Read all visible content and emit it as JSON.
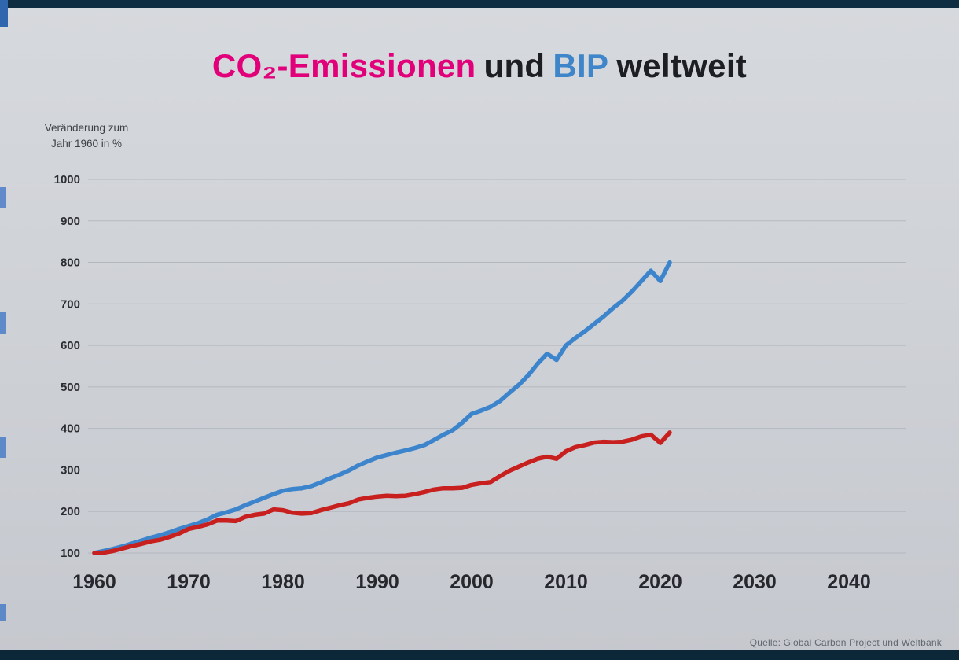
{
  "title": {
    "part1": "CO₂-Emissionen",
    "part2": "und",
    "part3": "BIP",
    "part4": "weltweit"
  },
  "y_axis_label": {
    "line1": "Veränderung zum",
    "line2": "Jahr 1960 in %"
  },
  "source": "Quelle: Global Carbon Project und Weltbank",
  "colors": {
    "title_pink": "#e2007a",
    "title_blue": "#3e86c9",
    "title_dark": "#1d1e24",
    "bip_line": "#3c85cc",
    "co2_line": "#c8201f"
  },
  "chart_data": {
    "type": "line",
    "title": "CO₂-Emissionen und BIP weltweit",
    "xlabel": "",
    "ylabel": "Veränderung zum Jahr 1960 in %",
    "grid": "horizontal",
    "legend": "none",
    "xlim": [
      1958,
      2046
    ],
    "ylim": [
      100,
      1000
    ],
    "x_ticks": [
      1960,
      1970,
      1980,
      1990,
      2000,
      2010,
      2020,
      2030,
      2040
    ],
    "y_ticks": [
      100,
      200,
      300,
      400,
      500,
      600,
      700,
      800,
      900,
      1000
    ],
    "x": [
      1960,
      1961,
      1962,
      1963,
      1964,
      1965,
      1966,
      1967,
      1968,
      1969,
      1970,
      1971,
      1972,
      1973,
      1974,
      1975,
      1976,
      1977,
      1978,
      1979,
      1980,
      1981,
      1982,
      1983,
      1984,
      1985,
      1986,
      1987,
      1988,
      1989,
      1990,
      1991,
      1992,
      1993,
      1994,
      1995,
      1996,
      1997,
      1998,
      1999,
      2000,
      2001,
      2002,
      2003,
      2004,
      2005,
      2006,
      2007,
      2008,
      2009,
      2010,
      2011,
      2012,
      2013,
      2014,
      2015,
      2016,
      2017,
      2018,
      2019,
      2020,
      2021
    ],
    "series": [
      {
        "name": "BIP",
        "color": "#3c85cc",
        "values": [
          100,
          105,
          110,
          116,
          123,
          130,
          137,
          143,
          150,
          158,
          165,
          172,
          181,
          192,
          198,
          205,
          215,
          224,
          233,
          242,
          250,
          254,
          256,
          261,
          270,
          280,
          289,
          299,
          311,
          321,
          330,
          336,
          342,
          347,
          353,
          360,
          372,
          385,
          396,
          414,
          435,
          443,
          452,
          466,
          486,
          505,
          528,
          556,
          580,
          565,
          600,
          618,
          634,
          652,
          670,
          690,
          708,
          730,
          755,
          780,
          755,
          800
        ]
      },
      {
        "name": "CO₂-Emissionen",
        "color": "#c8201f",
        "values": [
          100,
          101,
          105,
          111,
          117,
          122,
          128,
          132,
          139,
          147,
          158,
          163,
          169,
          178,
          178,
          177,
          187,
          192,
          195,
          205,
          203,
          197,
          195,
          196,
          203,
          209,
          215,
          220,
          229,
          233,
          236,
          238,
          237,
          238,
          242,
          247,
          253,
          256,
          256,
          257,
          264,
          268,
          271,
          285,
          298,
          308,
          318,
          327,
          332,
          327,
          345,
          355,
          360,
          366,
          368,
          367,
          368,
          373,
          381,
          385,
          365,
          390
        ]
      }
    ]
  }
}
